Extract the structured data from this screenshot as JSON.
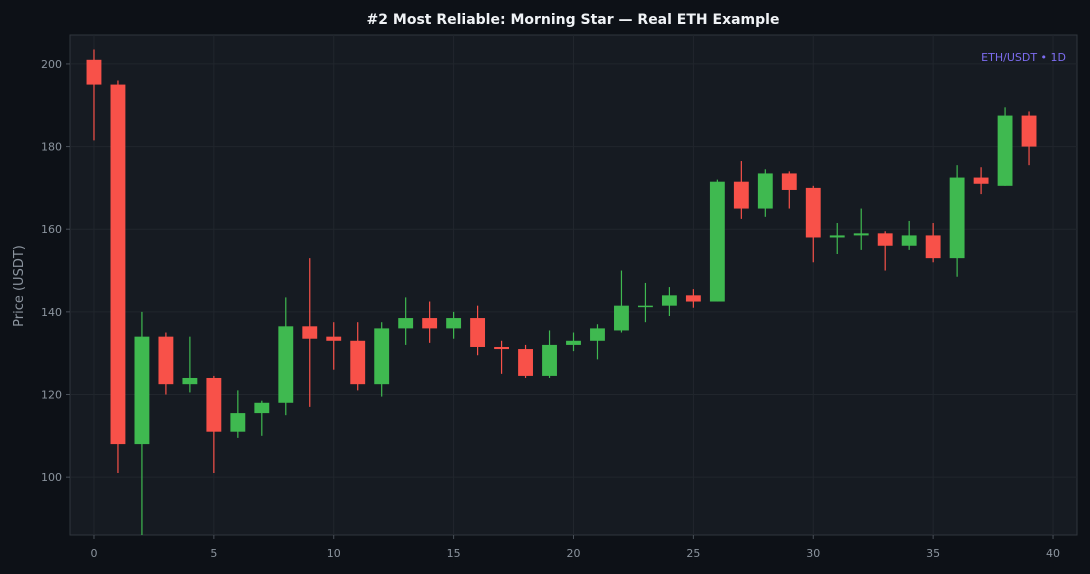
{
  "chart_data": {
    "type": "candlestick",
    "title": "#2 Most Reliable: Morning Star — Real ETH Example",
    "xlabel": "",
    "ylabel": "Price (USDT)",
    "symbol_label": "ETH/USDT • 1D",
    "xlim": [
      -1,
      41
    ],
    "ylim": [
      86,
      207
    ],
    "xticks": [
      0,
      5,
      10,
      15,
      20,
      25,
      30,
      35,
      40
    ],
    "yticks": [
      100,
      120,
      140,
      160,
      180,
      200
    ],
    "grid": true,
    "colors": {
      "up": "#3fb950",
      "down": "#f85149",
      "background": "#0d1117",
      "plot_background": "#161b22",
      "grid": "#21262d",
      "text": "#8b949e",
      "title": "#f0f3f6",
      "watermark": "#7c6cf0"
    },
    "candles": [
      {
        "x": 0,
        "open": 201,
        "high": 203.5,
        "low": 181.5,
        "close": 195
      },
      {
        "x": 1,
        "open": 195,
        "high": 196,
        "low": 101,
        "close": 108
      },
      {
        "x": 2,
        "open": 108,
        "high": 140,
        "low": 86,
        "close": 134
      },
      {
        "x": 3,
        "open": 134,
        "high": 135,
        "low": 120,
        "close": 122.5
      },
      {
        "x": 4,
        "open": 122.5,
        "high": 134,
        "low": 120.5,
        "close": 124
      },
      {
        "x": 5,
        "open": 124,
        "high": 124.5,
        "low": 101,
        "close": 111
      },
      {
        "x": 6,
        "open": 111,
        "high": 121,
        "low": 109.5,
        "close": 115.5
      },
      {
        "x": 7,
        "open": 115.5,
        "high": 118.5,
        "low": 110,
        "close": 118
      },
      {
        "x": 8,
        "open": 118,
        "high": 143.5,
        "low": 115,
        "close": 136.5
      },
      {
        "x": 9,
        "open": 136.5,
        "high": 153,
        "low": 117,
        "close": 133.5
      },
      {
        "x": 10,
        "open": 134,
        "high": 137.5,
        "low": 126,
        "close": 133
      },
      {
        "x": 11,
        "open": 133,
        "high": 137.5,
        "low": 121,
        "close": 122.5
      },
      {
        "x": 12,
        "open": 122.5,
        "high": 137.5,
        "low": 119.5,
        "close": 136
      },
      {
        "x": 13,
        "open": 136,
        "high": 143.5,
        "low": 132,
        "close": 138.5
      },
      {
        "x": 14,
        "open": 138.5,
        "high": 142.5,
        "low": 132.5,
        "close": 136
      },
      {
        "x": 15,
        "open": 136,
        "high": 140,
        "low": 133.5,
        "close": 138.5
      },
      {
        "x": 16,
        "open": 138.5,
        "high": 141.5,
        "low": 129.5,
        "close": 131.5
      },
      {
        "x": 17,
        "open": 131.5,
        "high": 133,
        "low": 125,
        "close": 131
      },
      {
        "x": 18,
        "open": 131,
        "high": 132,
        "low": 124,
        "close": 124.5
      },
      {
        "x": 19,
        "open": 124.5,
        "high": 135.5,
        "low": 124,
        "close": 132
      },
      {
        "x": 20,
        "open": 132,
        "high": 135,
        "low": 130.5,
        "close": 133
      },
      {
        "x": 21,
        "open": 133,
        "high": 137,
        "low": 128.5,
        "close": 136
      },
      {
        "x": 22,
        "open": 135.5,
        "high": 150,
        "low": 135,
        "close": 141.5
      },
      {
        "x": 23,
        "open": 141.5,
        "high": 147,
        "low": 137.5,
        "close": 141.5
      },
      {
        "x": 24,
        "open": 141.5,
        "high": 146,
        "low": 139,
        "close": 144
      },
      {
        "x": 25,
        "open": 144,
        "high": 145.5,
        "low": 141,
        "close": 142.5
      },
      {
        "x": 26,
        "open": 142.5,
        "high": 172,
        "low": 142.5,
        "close": 171.5
      },
      {
        "x": 27,
        "open": 171.5,
        "high": 176.5,
        "low": 162.5,
        "close": 165
      },
      {
        "x": 28,
        "open": 165,
        "high": 174.5,
        "low": 163,
        "close": 173.5
      },
      {
        "x": 29,
        "open": 173.5,
        "high": 174,
        "low": 165,
        "close": 169.5
      },
      {
        "x": 30,
        "open": 170,
        "high": 170.5,
        "low": 152,
        "close": 158
      },
      {
        "x": 31,
        "open": 158,
        "high": 161.5,
        "low": 154,
        "close": 158.5
      },
      {
        "x": 32,
        "open": 158.5,
        "high": 165,
        "low": 155,
        "close": 159
      },
      {
        "x": 33,
        "open": 159,
        "high": 159.5,
        "low": 150,
        "close": 156
      },
      {
        "x": 34,
        "open": 156,
        "high": 162,
        "low": 155,
        "close": 158.5
      },
      {
        "x": 35,
        "open": 158.5,
        "high": 161.5,
        "low": 152,
        "close": 153
      },
      {
        "x": 36,
        "open": 153,
        "high": 175.5,
        "low": 148.5,
        "close": 172.5
      },
      {
        "x": 37,
        "open": 172.5,
        "high": 175,
        "low": 168.5,
        "close": 171
      },
      {
        "x": 38,
        "open": 170.5,
        "high": 189.5,
        "low": 170.5,
        "close": 187.5
      },
      {
        "x": 39,
        "open": 187.5,
        "high": 188.5,
        "low": 175.5,
        "close": 180
      }
    ]
  }
}
